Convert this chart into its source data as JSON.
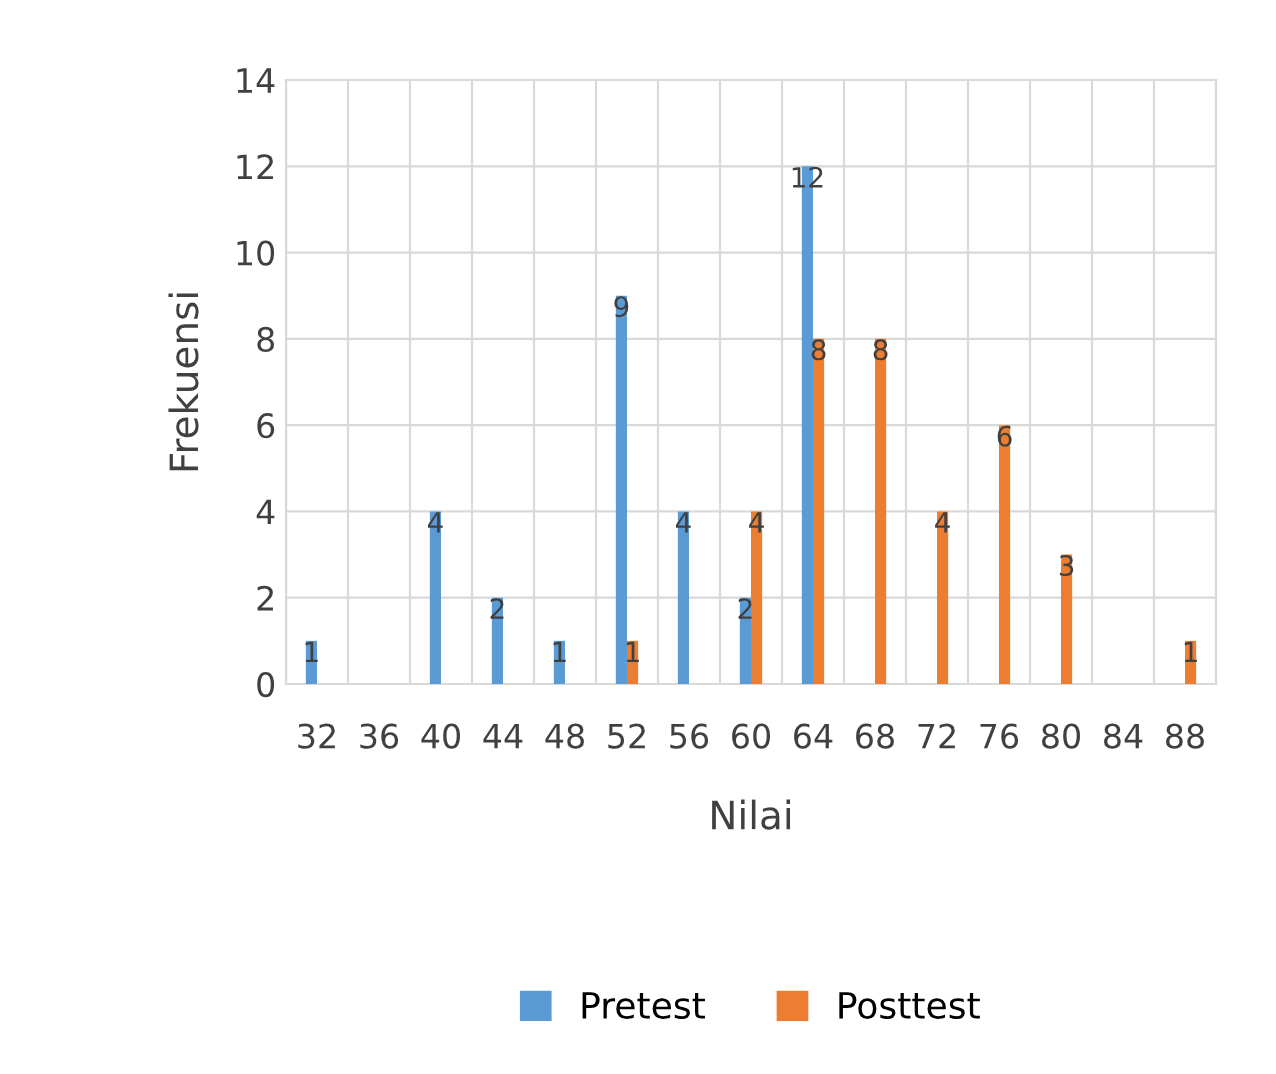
{
  "chart_data": {
    "type": "bar",
    "xlabel": "Nilai",
    "ylabel": "Frekuensi",
    "categories": [
      "32",
      "36",
      "40",
      "44",
      "48",
      "52",
      "56",
      "60",
      "64",
      "68",
      "72",
      "76",
      "80",
      "84",
      "88"
    ],
    "series": [
      {
        "name": "Pretest",
        "color": "#5b9bd5",
        "values": [
          1,
          0,
          4,
          2,
          1,
          9,
          4,
          2,
          12,
          0,
          0,
          0,
          0,
          0,
          0
        ],
        "value_labels": [
          "1",
          null,
          "4",
          "2",
          "1",
          "9",
          "4",
          "2",
          "12",
          null,
          null,
          null,
          null,
          null,
          null
        ]
      },
      {
        "name": "Posttest",
        "color": "#ed7d31",
        "values": [
          0,
          0,
          0,
          0,
          0,
          1,
          0,
          4,
          8,
          8,
          4,
          6,
          3,
          0,
          1
        ],
        "value_labels": [
          null,
          null,
          null,
          null,
          null,
          "1",
          null,
          "4",
          "8",
          "8",
          "4",
          "6",
          "3",
          null,
          "1"
        ]
      }
    ],
    "ylim": [
      0,
      14
    ],
    "yticks": [
      0,
      2,
      4,
      6,
      8,
      10,
      12,
      14
    ],
    "grid": true,
    "legend": "bottom"
  }
}
